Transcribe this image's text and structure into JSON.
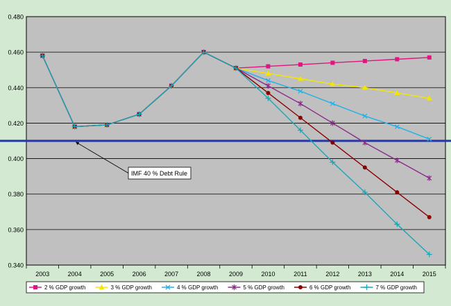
{
  "chart_data": {
    "type": "line",
    "title": "",
    "xlabel": "",
    "ylabel": "",
    "categories": [
      "2003",
      "2004",
      "2005",
      "2006",
      "2007",
      "2008",
      "2009",
      "2010",
      "2011",
      "2012",
      "2013",
      "2014",
      "2015"
    ],
    "ylim": [
      0.34,
      0.48
    ],
    "y_ticks": [
      "0.340",
      "0.360",
      "0.380",
      "0.400",
      "0.420",
      "0.440",
      "0.460",
      "0.480"
    ],
    "grid": "horizontal",
    "legend_position": "bottom",
    "plot_background": "#c0c0c0",
    "series": [
      {
        "name": "2 % GDP growth",
        "color": "#e0157f",
        "marker": "square",
        "values": [
          0.458,
          0.418,
          0.419,
          0.425,
          0.441,
          0.46,
          0.451,
          0.452,
          0.453,
          0.454,
          0.455,
          0.456,
          0.457
        ]
      },
      {
        "name": "3 % GDP growth",
        "color": "#f5e600",
        "marker": "triangle",
        "values": [
          0.458,
          0.418,
          0.419,
          0.425,
          0.441,
          0.46,
          0.451,
          0.448,
          0.445,
          0.442,
          0.44,
          0.437,
          0.434
        ]
      },
      {
        "name": "4 % GDP growth",
        "color": "#23b0e6",
        "marker": "x",
        "values": [
          0.458,
          0.418,
          0.419,
          0.425,
          0.441,
          0.46,
          0.451,
          0.444,
          0.438,
          0.431,
          0.424,
          0.418,
          0.411
        ]
      },
      {
        "name": "5 % GDP growth",
        "color": "#8a2a8a",
        "marker": "star",
        "values": [
          0.458,
          0.418,
          0.419,
          0.425,
          0.441,
          0.46,
          0.451,
          0.441,
          0.431,
          0.42,
          0.409,
          0.399,
          0.389
        ]
      },
      {
        "name": "6 % GDP growth",
        "color": "#8b0000",
        "marker": "circle",
        "values": [
          0.458,
          0.418,
          0.419,
          0.425,
          0.441,
          0.46,
          0.451,
          0.437,
          0.423,
          0.409,
          0.395,
          0.381,
          0.367
        ]
      },
      {
        "name": "7 % GDP growth",
        "color": "#1aa7b8",
        "marker": "plus",
        "values": [
          0.458,
          0.418,
          0.419,
          0.425,
          0.441,
          0.46,
          0.451,
          0.434,
          0.416,
          0.398,
          0.381,
          0.363,
          0.346
        ]
      }
    ],
    "reference_line": {
      "value": 0.41,
      "color": "#2236a8"
    },
    "annotations": [
      {
        "text": "IMF 40 % Debt Rule",
        "points_to": {
          "x": "2004",
          "y": 0.41
        }
      }
    ]
  }
}
